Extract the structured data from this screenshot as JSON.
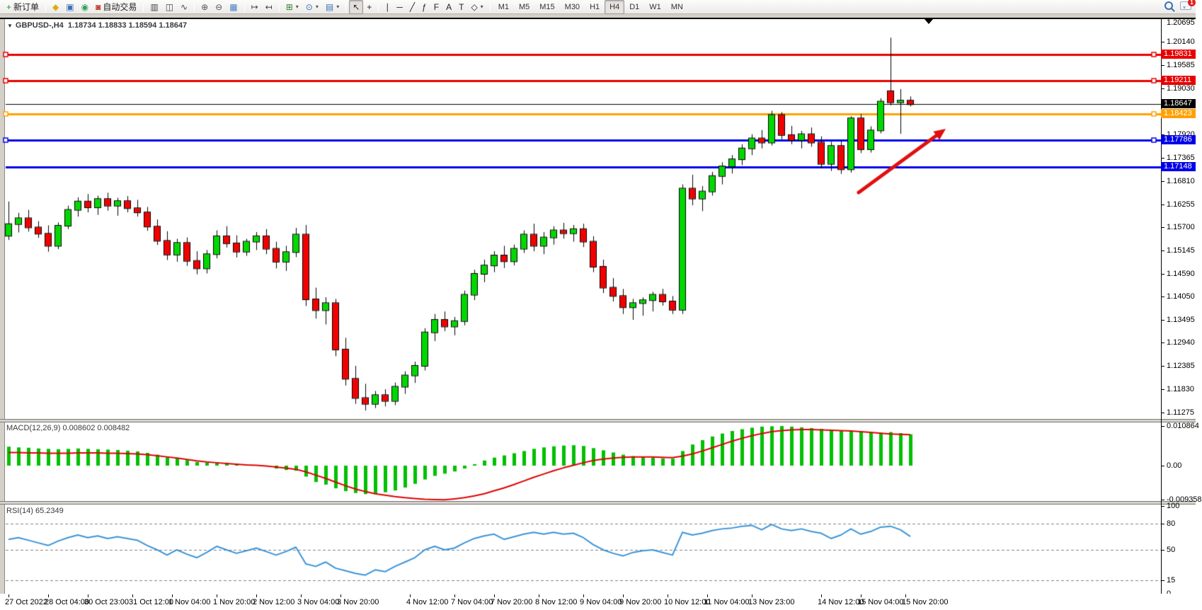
{
  "toolbar": {
    "groups": [
      [
        {
          "name": "new-order-button",
          "glyph": "+",
          "color": "#1e9e1e",
          "label": "新订单"
        }
      ],
      [
        {
          "name": "quotes-icon-button",
          "glyph": "◆",
          "color": "#e0a818"
        },
        {
          "name": "market-watch-button",
          "glyph": "▣",
          "color": "#3b6fb5"
        },
        {
          "name": "navigator-button",
          "glyph": "◉",
          "color": "#2e9e5b"
        },
        {
          "name": "autotrading-button",
          "glyph": "◙",
          "color": "#c03028",
          "label": "自动交易"
        }
      ],
      [
        {
          "name": "bar-chart-type-button",
          "glyph": "▥",
          "color": "#444"
        },
        {
          "name": "candlestick-chart-type-button",
          "glyph": "◫",
          "color": "#444"
        },
        {
          "name": "line-chart-type-button",
          "glyph": "∿",
          "color": "#444"
        }
      ],
      [
        {
          "name": "zoom-in-button",
          "glyph": "⊕",
          "color": "#555"
        },
        {
          "name": "zoom-out-button",
          "glyph": "⊖",
          "color": "#555"
        },
        {
          "name": "tile-windows-button",
          "glyph": "▦",
          "color": "#4a7ac2"
        }
      ],
      [
        {
          "name": "auto-scroll-button",
          "glyph": "↦",
          "color": "#444"
        },
        {
          "name": "chart-shift-button",
          "glyph": "↤",
          "color": "#444"
        }
      ],
      [
        {
          "name": "new-chart-button",
          "glyph": "⊞",
          "color": "#2e7d32",
          "caret": true
        },
        {
          "name": "periods-button",
          "glyph": "⊙",
          "color": "#3b6fb5",
          "caret": true
        },
        {
          "name": "templates-button",
          "glyph": "▤",
          "color": "#3b6fb5",
          "caret": true
        }
      ],
      [
        {
          "name": "cursor-button",
          "glyph": "↖",
          "color": "#222",
          "pressed": true
        },
        {
          "name": "crosshair-button",
          "glyph": "+",
          "color": "#222"
        }
      ],
      [
        {
          "name": "vertical-line-button",
          "glyph": "∣",
          "color": "#222"
        },
        {
          "name": "horizontal-line-button",
          "glyph": "─",
          "color": "#222"
        },
        {
          "name": "trendline-button",
          "glyph": "╱",
          "color": "#222"
        },
        {
          "name": "channel-button",
          "glyph": "ƒ",
          "color": "#222"
        },
        {
          "name": "fibonacci-button",
          "glyph": "F",
          "color": "#222"
        },
        {
          "name": "text-button",
          "glyph": "A",
          "color": "#222"
        },
        {
          "name": "text-label-button",
          "glyph": "T",
          "color": "#222"
        },
        {
          "name": "arrows-button",
          "glyph": "◇",
          "color": "#222",
          "caret": true
        }
      ]
    ],
    "timeframes": [
      {
        "label": "M1"
      },
      {
        "label": "M5"
      },
      {
        "label": "M15"
      },
      {
        "label": "M30"
      },
      {
        "label": "H1"
      },
      {
        "label": "H4",
        "pressed": true
      },
      {
        "label": "D1"
      },
      {
        "label": "W1"
      },
      {
        "label": "MN"
      }
    ],
    "notification_count": "1"
  },
  "chart_window": {
    "title_symbol": "GBPUSD-,H4",
    "title_ohlc": "1.18734 1.18833 1.18594 1.18647"
  },
  "price_axis": {
    "labels": [
      "1.20695",
      "1.20140",
      "1.19585",
      "1.19030",
      "1.17920",
      "1.17365",
      "1.16810",
      "1.16255",
      "1.15700",
      "1.15145",
      "1.14590",
      "1.14050",
      "1.13495",
      "1.12940",
      "1.12385",
      "1.11830",
      "1.11275"
    ]
  },
  "indicator_macd": {
    "label": "MACD(12,26,9)",
    "values": "0.008602 0.008482",
    "axis": [
      {
        "text": "0.010864",
        "v": 0.010864
      },
      {
        "text": "0.00",
        "v": 0
      },
      {
        "text": "-0.009358",
        "v": -0.009358
      }
    ]
  },
  "indicator_rsi": {
    "label": "RSI(14)",
    "value": "65.2349",
    "axis": [
      {
        "text": "100",
        "v": 100
      },
      {
        "text": "80",
        "v": 80
      },
      {
        "text": "50",
        "v": 50
      },
      {
        "text": "15",
        "v": 15
      },
      {
        "text": "0",
        "v": 0
      }
    ],
    "levels": [
      80,
      50,
      15
    ]
  },
  "time_axis": {
    "labels": [
      {
        "text": "27 Oct 2022",
        "bar": 0
      },
      {
        "text": "28 Oct 04:00",
        "bar": 4
      },
      {
        "text": "30 Oct 23:00",
        "bar": 8
      },
      {
        "text": "31 Oct 12:00",
        "bar": 12.5
      },
      {
        "text": "1 Nov 04:00",
        "bar": 16.5
      },
      {
        "text": "1 Nov 20:00",
        "bar": 21
      },
      {
        "text": "2 Nov 12:00",
        "bar": 25
      },
      {
        "text": "3 Nov 04:00",
        "bar": 29.5
      },
      {
        "text": "3 Nov 20:00",
        "bar": 33.5
      },
      {
        "text": "4 Nov 12:00",
        "bar": 40.5
      },
      {
        "text": "7 Nov 04:00",
        "bar": 45
      },
      {
        "text": "7 Nov 20:00",
        "bar": 49
      },
      {
        "text": "8 Nov 12:00",
        "bar": 53.5
      },
      {
        "text": "9 Nov 04:00",
        "bar": 58
      },
      {
        "text": "9 Nov 20:00",
        "bar": 62
      },
      {
        "text": "10 Nov 12:00",
        "bar": 66.5
      },
      {
        "text": "11 Nov 04:00",
        "bar": 70.5
      },
      {
        "text": "13 Nov 23:00",
        "bar": 75
      },
      {
        "text": "14 Nov 12:00",
        "bar": 82
      },
      {
        "text": "15 Nov 04:00",
        "bar": 86
      },
      {
        "text": "15 Nov 20:00",
        "bar": 90.5
      }
    ]
  },
  "chart_data": {
    "type": "candlestick",
    "symbol": "GBPUSD-",
    "period": "H4",
    "ylim": [
      1.1112,
      1.207
    ],
    "colors": {
      "up": "#00d800",
      "down": "#f20000",
      "wick": "#000000",
      "macd_hist": "#00c000",
      "macd_signal": "#e00000",
      "rsi_line": "#3a94d8",
      "arrow": "#e01010"
    },
    "hlines": [
      {
        "price": 1.19831,
        "color": "#e80000",
        "width": 3,
        "handles": true,
        "badge": "1.19831"
      },
      {
        "price": 1.19211,
        "color": "#e80000",
        "width": 3,
        "handles": true,
        "badge": "1.19211"
      },
      {
        "price": 1.18647,
        "color": "#000000",
        "width": 1,
        "handles": false,
        "badge": "1.18647"
      },
      {
        "price": 1.18423,
        "color": "#ffa000",
        "width": 3,
        "handles": true,
        "badge": "1.18423"
      },
      {
        "price": 1.17786,
        "color": "#0000e8",
        "width": 3,
        "handles": true,
        "badge": "1.17786"
      },
      {
        "price": 1.17148,
        "color": "#0000e8",
        "width": 3,
        "handles": false,
        "badge": "1.17148"
      }
    ],
    "arrow_annotation": {
      "x1": 1213,
      "y1": 272,
      "x2": 1336,
      "y2": 182
    },
    "shift_marker_x": 1312,
    "candles": [
      [
        1.155,
        1.1632,
        1.154,
        1.1578
      ],
      [
        1.1578,
        1.1605,
        1.1558,
        1.1592
      ],
      [
        1.1592,
        1.1612,
        1.156,
        1.157
      ],
      [
        1.157,
        1.1585,
        1.1545,
        1.1555
      ],
      [
        1.1555,
        1.1575,
        1.1512,
        1.1526
      ],
      [
        1.1526,
        1.1582,
        1.1518,
        1.1574
      ],
      [
        1.1574,
        1.1622,
        1.1566,
        1.1612
      ],
      [
        1.1612,
        1.1642,
        1.1596,
        1.1632
      ],
      [
        1.1632,
        1.165,
        1.1606,
        1.1618
      ],
      [
        1.1618,
        1.1646,
        1.16,
        1.1638
      ],
      [
        1.1638,
        1.1653,
        1.161,
        1.1622
      ],
      [
        1.1622,
        1.1641,
        1.1598,
        1.1633
      ],
      [
        1.1633,
        1.1645,
        1.1606,
        1.1616
      ],
      [
        1.1616,
        1.1636,
        1.1596,
        1.1606
      ],
      [
        1.1606,
        1.1619,
        1.1562,
        1.1572
      ],
      [
        1.1572,
        1.1589,
        1.1528,
        1.1538
      ],
      [
        1.1538,
        1.1561,
        1.1492,
        1.1505
      ],
      [
        1.1505,
        1.1543,
        1.1488,
        1.1533
      ],
      [
        1.1533,
        1.1546,
        1.1478,
        1.149
      ],
      [
        1.149,
        1.1513,
        1.1458,
        1.1472
      ],
      [
        1.1472,
        1.1516,
        1.146,
        1.1506
      ],
      [
        1.1506,
        1.1563,
        1.1496,
        1.1549
      ],
      [
        1.1549,
        1.1573,
        1.1522,
        1.1532
      ],
      [
        1.1532,
        1.1551,
        1.1498,
        1.1512
      ],
      [
        1.1512,
        1.1543,
        1.1502,
        1.1536
      ],
      [
        1.1536,
        1.1559,
        1.1516,
        1.1549
      ],
      [
        1.1549,
        1.1566,
        1.1506,
        1.1519
      ],
      [
        1.1519,
        1.1536,
        1.1472,
        1.1488
      ],
      [
        1.1488,
        1.1526,
        1.1466,
        1.1511
      ],
      [
        1.1511,
        1.1569,
        1.1499,
        1.1553
      ],
      [
        1.1553,
        1.1576,
        1.1382,
        1.1398
      ],
      [
        1.1398,
        1.1426,
        1.1352,
        1.1372
      ],
      [
        1.1372,
        1.1403,
        1.1338,
        1.1389
      ],
      [
        1.1389,
        1.1399,
        1.1262,
        1.1278
      ],
      [
        1.1278,
        1.1306,
        1.1192,
        1.1208
      ],
      [
        1.1208,
        1.1239,
        1.1148,
        1.1162
      ],
      [
        1.1162,
        1.1196,
        1.1132,
        1.1148
      ],
      [
        1.1148,
        1.1179,
        1.1138,
        1.1169
      ],
      [
        1.1169,
        1.1183,
        1.1142,
        1.1155
      ],
      [
        1.1155,
        1.1199,
        1.1145,
        1.1189
      ],
      [
        1.1189,
        1.1226,
        1.1172,
        1.1216
      ],
      [
        1.1216,
        1.1249,
        1.1198,
        1.1239
      ],
      [
        1.1239,
        1.1329,
        1.1228,
        1.1319
      ],
      [
        1.1319,
        1.1363,
        1.1298,
        1.1349
      ],
      [
        1.1349,
        1.1369,
        1.1322,
        1.1333
      ],
      [
        1.1333,
        1.1356,
        1.1312,
        1.1346
      ],
      [
        1.1346,
        1.1419,
        1.1336,
        1.1409
      ],
      [
        1.1409,
        1.1469,
        1.1396,
        1.1459
      ],
      [
        1.1459,
        1.1493,
        1.1439,
        1.1479
      ],
      [
        1.1479,
        1.1513,
        1.1463,
        1.1503
      ],
      [
        1.1503,
        1.1526,
        1.1473,
        1.1489
      ],
      [
        1.1489,
        1.1529,
        1.1479,
        1.1519
      ],
      [
        1.1519,
        1.1563,
        1.1509,
        1.1553
      ],
      [
        1.1553,
        1.1579,
        1.1513,
        1.1526
      ],
      [
        1.1526,
        1.1559,
        1.1506,
        1.1546
      ],
      [
        1.1546,
        1.1573,
        1.1529,
        1.1563
      ],
      [
        1.1563,
        1.1581,
        1.1543,
        1.1556
      ],
      [
        1.1556,
        1.1576,
        1.1536,
        1.1566
      ],
      [
        1.1566,
        1.1579,
        1.1523,
        1.1536
      ],
      [
        1.1536,
        1.1549,
        1.1463,
        1.1476
      ],
      [
        1.1476,
        1.1493,
        1.1413,
        1.1426
      ],
      [
        1.1426,
        1.1449,
        1.1393,
        1.1406
      ],
      [
        1.1406,
        1.1423,
        1.1363,
        1.1379
      ],
      [
        1.1379,
        1.1399,
        1.1349,
        1.1389
      ],
      [
        1.1389,
        1.1403,
        1.1359,
        1.1396
      ],
      [
        1.1396,
        1.1416,
        1.1369,
        1.1409
      ],
      [
        1.1409,
        1.1423,
        1.1383,
        1.1393
      ],
      [
        1.1393,
        1.1406,
        1.1363,
        1.1373
      ],
      [
        1.1373,
        1.1673,
        1.1363,
        1.1663
      ],
      [
        1.1663,
        1.1696,
        1.1623,
        1.1639
      ],
      [
        1.1639,
        1.1669,
        1.1609,
        1.1656
      ],
      [
        1.1656,
        1.1703,
        1.1646,
        1.1693
      ],
      [
        1.1693,
        1.1726,
        1.1673,
        1.1716
      ],
      [
        1.1716,
        1.1743,
        1.1699,
        1.1733
      ],
      [
        1.1733,
        1.1769,
        1.1719,
        1.1759
      ],
      [
        1.1759,
        1.1793,
        1.1743,
        1.1783
      ],
      [
        1.1783,
        1.1803,
        1.1759,
        1.1773
      ],
      [
        1.1773,
        1.1849,
        1.1766,
        1.1839
      ],
      [
        1.1839,
        1.1846,
        1.1781,
        1.1791
      ],
      [
        1.1791,
        1.1813,
        1.1769,
        1.1779
      ],
      [
        1.1779,
        1.1801,
        1.1759,
        1.1793
      ],
      [
        1.1793,
        1.1809,
        1.1763,
        1.1773
      ],
      [
        1.1773,
        1.1788,
        1.1711,
        1.1722
      ],
      [
        1.1722,
        1.1775,
        1.1705,
        1.1765
      ],
      [
        1.1765,
        1.1778,
        1.1698,
        1.1709
      ],
      [
        1.1709,
        1.1836,
        1.1701,
        1.1831
      ],
      [
        1.1831,
        1.1841,
        1.1748,
        1.1757
      ],
      [
        1.1757,
        1.1812,
        1.1749,
        1.1802
      ],
      [
        1.1802,
        1.1879,
        1.1795,
        1.1871
      ],
      [
        1.1896,
        1.2024,
        1.1862,
        1.1869
      ],
      [
        1.1869,
        1.1901,
        1.1794,
        1.18734
      ],
      [
        1.18734,
        1.18833,
        1.18594,
        1.18647
      ]
    ],
    "macd": {
      "hist": [
        0.0052,
        0.005,
        0.0049,
        0.0047,
        0.0046,
        0.0045,
        0.0046,
        0.0047,
        0.0046,
        0.0045,
        0.0044,
        0.0043,
        0.0041,
        0.0039,
        0.0035,
        0.003,
        0.0024,
        0.002,
        0.0015,
        0.001,
        0.0008,
        0.0009,
        0.0008,
        0.0005,
        0.0003,
        0.0002,
        -0.0002,
        -0.0008,
        -0.0012,
        -0.0014,
        -0.003,
        -0.0045,
        -0.0052,
        -0.0062,
        -0.007,
        -0.0075,
        -0.0078,
        -0.0076,
        -0.0073,
        -0.0068,
        -0.006,
        -0.005,
        -0.0038,
        -0.0028,
        -0.0022,
        -0.0016,
        -0.0008,
        0.0004,
        0.0014,
        0.0022,
        0.0028,
        0.0034,
        0.004,
        0.0046,
        0.005,
        0.0053,
        0.0055,
        0.0056,
        0.0054,
        0.0048,
        0.0042,
        0.0036,
        0.003,
        0.0026,
        0.0023,
        0.0022,
        0.002,
        0.0019,
        0.004,
        0.0058,
        0.007,
        0.008,
        0.0088,
        0.0095,
        0.01,
        0.0104,
        0.0107,
        0.0108,
        0.010864,
        0.0107,
        0.0105,
        0.0103,
        0.0101,
        0.0099,
        0.0097,
        0.0095,
        0.0093,
        0.0091,
        0.009,
        0.0092,
        0.0089,
        0.008602
      ],
      "signal": [
        0.0036,
        0.0036,
        0.0035,
        0.0035,
        0.0034,
        0.0034,
        0.0034,
        0.0035,
        0.0035,
        0.0035,
        0.0034,
        0.0034,
        0.0033,
        0.0032,
        0.003,
        0.0027,
        0.0024,
        0.0021,
        0.0017,
        0.0013,
        0.001,
        0.0008,
        0.0006,
        0.0004,
        0.0002,
        0.0001,
        -0.0001,
        -0.0004,
        -0.0007,
        -0.001,
        -0.0017,
        -0.0026,
        -0.0035,
        -0.0045,
        -0.0055,
        -0.0064,
        -0.0071,
        -0.0077,
        -0.0081,
        -0.0085,
        -0.0088,
        -0.009,
        -0.0092,
        -0.0093,
        -0.009358,
        -0.0091,
        -0.0088,
        -0.0083,
        -0.0077,
        -0.0069,
        -0.0061,
        -0.0052,
        -0.0042,
        -0.0032,
        -0.0023,
        -0.0014,
        -0.0006,
        0.0001,
        0.0008,
        0.0014,
        0.0018,
        0.0021,
        0.0023,
        0.0024,
        0.0024,
        0.0024,
        0.0023,
        0.0022,
        0.0026,
        0.0032,
        0.004,
        0.0049,
        0.0058,
        0.0067,
        0.0075,
        0.0082,
        0.0088,
        0.0093,
        0.0096,
        0.0098,
        0.0099,
        0.0099,
        0.0098,
        0.0097,
        0.0096,
        0.0095,
        0.0093,
        0.0091,
        0.0089,
        0.0087,
        0.0086,
        0.008482
      ],
      "ylim": [
        -0.0099,
        0.0112
      ]
    },
    "rsi": {
      "values": [
        62,
        64,
        61,
        58,
        55,
        60,
        64,
        67,
        64,
        66,
        63,
        65,
        63,
        61,
        55,
        50,
        44,
        50,
        45,
        41,
        47,
        54,
        50,
        46,
        49,
        52,
        48,
        44,
        48,
        53,
        34,
        31,
        36,
        29,
        26,
        23,
        21,
        27,
        25,
        31,
        36,
        41,
        50,
        54,
        50,
        52,
        58,
        63,
        66,
        68,
        62,
        65,
        68,
        70,
        68,
        70,
        68,
        69,
        64,
        56,
        50,
        46,
        43,
        47,
        49,
        50,
        47,
        44,
        70,
        67,
        69,
        72,
        74,
        75,
        77,
        78,
        73,
        79,
        74,
        72,
        74,
        71,
        69,
        63,
        67,
        74,
        68,
        71,
        76,
        77,
        73,
        65.2349
      ],
      "ylim": [
        0,
        100
      ]
    }
  }
}
